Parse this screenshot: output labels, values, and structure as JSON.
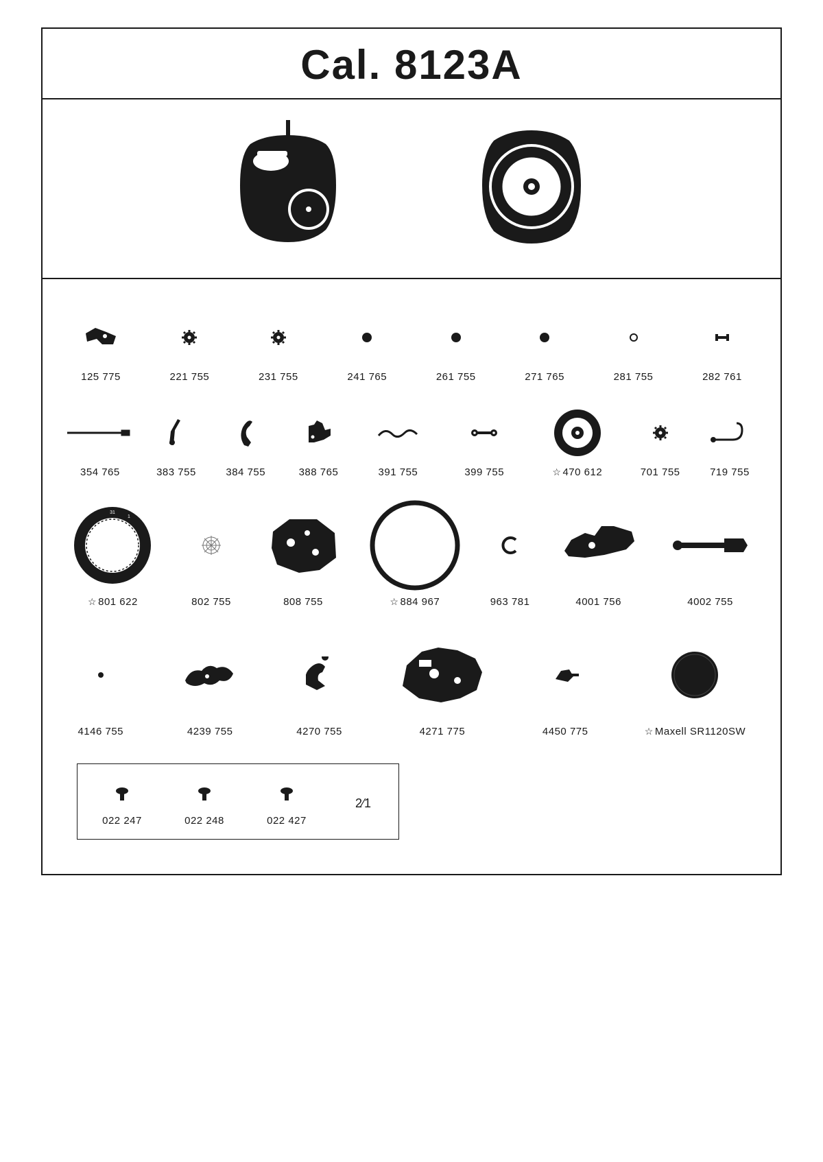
{
  "title": "Cal. 8123A",
  "colors": {
    "fg": "#1a1a1a",
    "bg": "#ffffff"
  },
  "row1": [
    {
      "label": "125 775"
    },
    {
      "label": "221 755"
    },
    {
      "label": "231 755"
    },
    {
      "label": "241 765"
    },
    {
      "label": "261 755"
    },
    {
      "label": "271 765"
    },
    {
      "label": "281 755"
    },
    {
      "label": "282 761"
    }
  ],
  "row2": [
    {
      "label": "354 765"
    },
    {
      "label": "383 755"
    },
    {
      "label": "384 755"
    },
    {
      "label": "388 765"
    },
    {
      "label": "391 755"
    },
    {
      "label": "399 755"
    },
    {
      "label": "470 612",
      "star": true
    },
    {
      "label": "701 755"
    },
    {
      "label": "719 755"
    }
  ],
  "row3": [
    {
      "label": "801 622",
      "star": true
    },
    {
      "label": "802 755"
    },
    {
      "label": "808 755"
    },
    {
      "label": "884 967",
      "star": true
    },
    {
      "label": "963 781"
    },
    {
      "label": "4001 756"
    },
    {
      "label": "4002 755"
    }
  ],
  "row4": [
    {
      "label": "4146 755"
    },
    {
      "label": "4239 755"
    },
    {
      "label": "4270 755"
    },
    {
      "label": "4271 775"
    },
    {
      "label": "4450 775"
    },
    {
      "label": "Maxell SR1120SW",
      "star": true
    }
  ],
  "screws": [
    {
      "label": "022 247"
    },
    {
      "label": "022 248"
    },
    {
      "label": "022 427"
    }
  ],
  "fraction": "2⁄1"
}
